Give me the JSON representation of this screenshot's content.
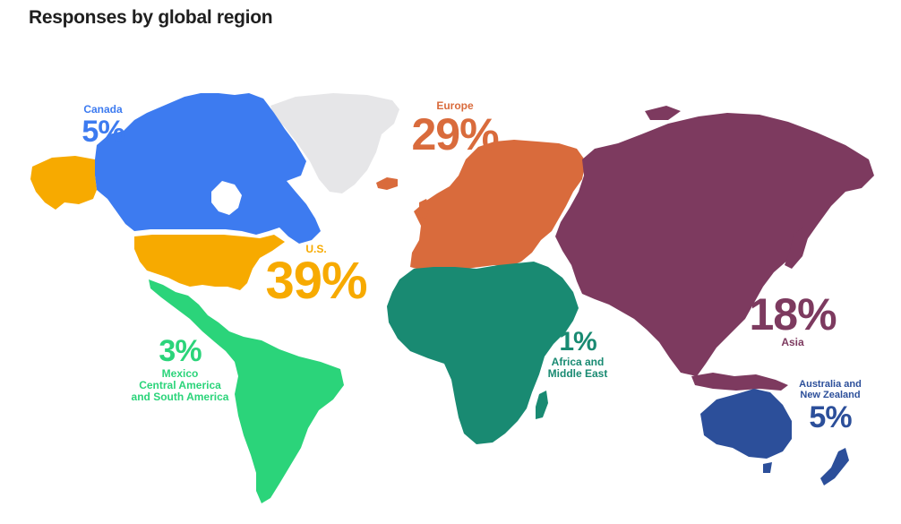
{
  "title": "Responses by global region",
  "colors": {
    "canada": "#3d7bf0",
    "us": "#f7aa00",
    "latam": "#2bd47a",
    "europe": "#d96b3c",
    "africa_me": "#198a72",
    "asia": "#7d3a5f",
    "oceania": "#2c4f9a",
    "greenland": "#e6e6e8"
  },
  "regions": {
    "canada": {
      "name": "Canada",
      "percent": "5%"
    },
    "us": {
      "name": "U.S.",
      "percent": "39%"
    },
    "latam": {
      "name_lines": [
        "Mexico",
        "Central America",
        "and South America"
      ],
      "percent": "3%"
    },
    "europe": {
      "name": "Europe",
      "percent": "29%"
    },
    "africa_me": {
      "name_lines": [
        "Africa and",
        "Middle East"
      ],
      "percent": "1%"
    },
    "asia": {
      "name": "Asia",
      "percent": "18%"
    },
    "oceania": {
      "name_lines": [
        "Australia and",
        "New Zealand"
      ],
      "percent": "5%"
    }
  }
}
